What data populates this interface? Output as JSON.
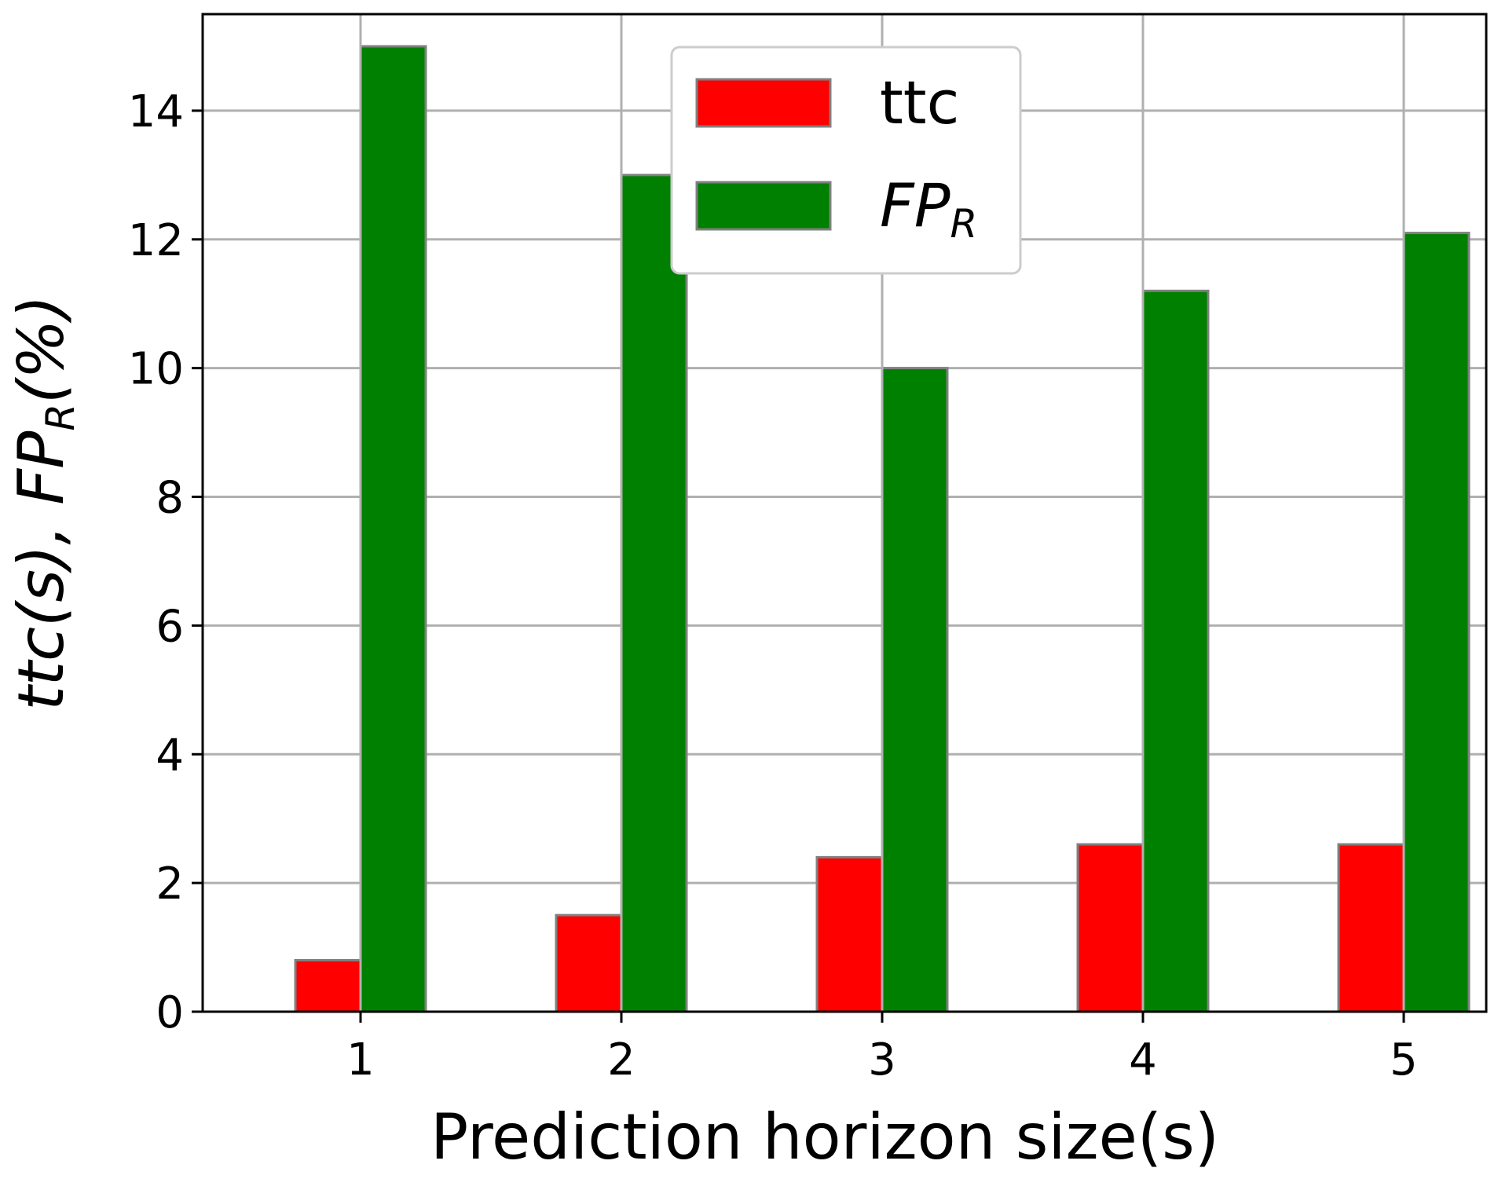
{
  "chart_data": {
    "type": "bar",
    "categories": [
      "1",
      "2",
      "3",
      "4",
      "5"
    ],
    "series": [
      {
        "name": "ttc",
        "color": "#ff0000",
        "values": [
          0.8,
          1.5,
          2.4,
          2.6,
          2.6
        ]
      },
      {
        "name": "FP_R",
        "color": "#008000",
        "values": [
          15.0,
          13.0,
          10.0,
          11.2,
          12.1
        ]
      }
    ],
    "xlabel": "Prediction horizon size(s)",
    "ylabel": "ttc(s), FP_R(%)",
    "ylim": [
      0,
      15.5
    ],
    "yticks": [
      "0",
      "2",
      "4",
      "6",
      "8",
      "10",
      "12",
      "14"
    ],
    "grid": true,
    "legend_position": "top-center"
  }
}
